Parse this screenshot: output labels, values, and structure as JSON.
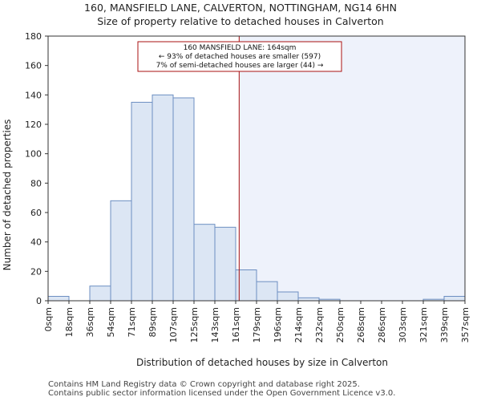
{
  "chart_data": {
    "type": "bar",
    "title": "160, MANSFIELD LANE, CALVERTON, NOTTINGHAM, NG14 6HN",
    "subtitle": "Size of property relative to detached houses in Calverton",
    "xlabel": "Distribution of detached houses by size in Calverton",
    "ylabel": "Number of detached properties",
    "ylim": [
      0,
      180
    ],
    "yticks": [
      0,
      20,
      40,
      60,
      80,
      100,
      120,
      140,
      160,
      180
    ],
    "bin_edges": [
      0,
      18,
      36,
      54,
      71,
      89,
      107,
      125,
      143,
      161,
      179,
      196,
      214,
      232,
      250,
      268,
      286,
      303,
      321,
      339,
      357
    ],
    "bin_labels": [
      "0sqm",
      "18sqm",
      "36sqm",
      "54sqm",
      "71sqm",
      "89sqm",
      "107sqm",
      "125sqm",
      "143sqm",
      "161sqm",
      "179sqm",
      "196sqm",
      "214sqm",
      "232sqm",
      "250sqm",
      "268sqm",
      "286sqm",
      "303sqm",
      "321sqm",
      "339sqm",
      "357sqm"
    ],
    "values": [
      3,
      0,
      10,
      68,
      135,
      140,
      138,
      52,
      50,
      21,
      13,
      6,
      2,
      1,
      0,
      0,
      0,
      0,
      1,
      3
    ],
    "marker_value": 164,
    "annotation": {
      "line1": "160 MANSFIELD LANE: 164sqm",
      "line2": "← 93% of detached houses are smaller (597)",
      "line3": "7% of semi-detached houses are larger (44) →"
    },
    "colors": {
      "bar_fill": "#dce6f4",
      "bar_edge": "#6d8fc2",
      "highlight_region": "#eef2fb",
      "marker": "#aa1111",
      "grid": "#ffffff"
    },
    "grid": false
  },
  "footer": {
    "line1": "Contains HM Land Registry data © Crown copyright and database right 2025.",
    "line2": "Contains public sector information licensed under the Open Government Licence v3.0."
  }
}
